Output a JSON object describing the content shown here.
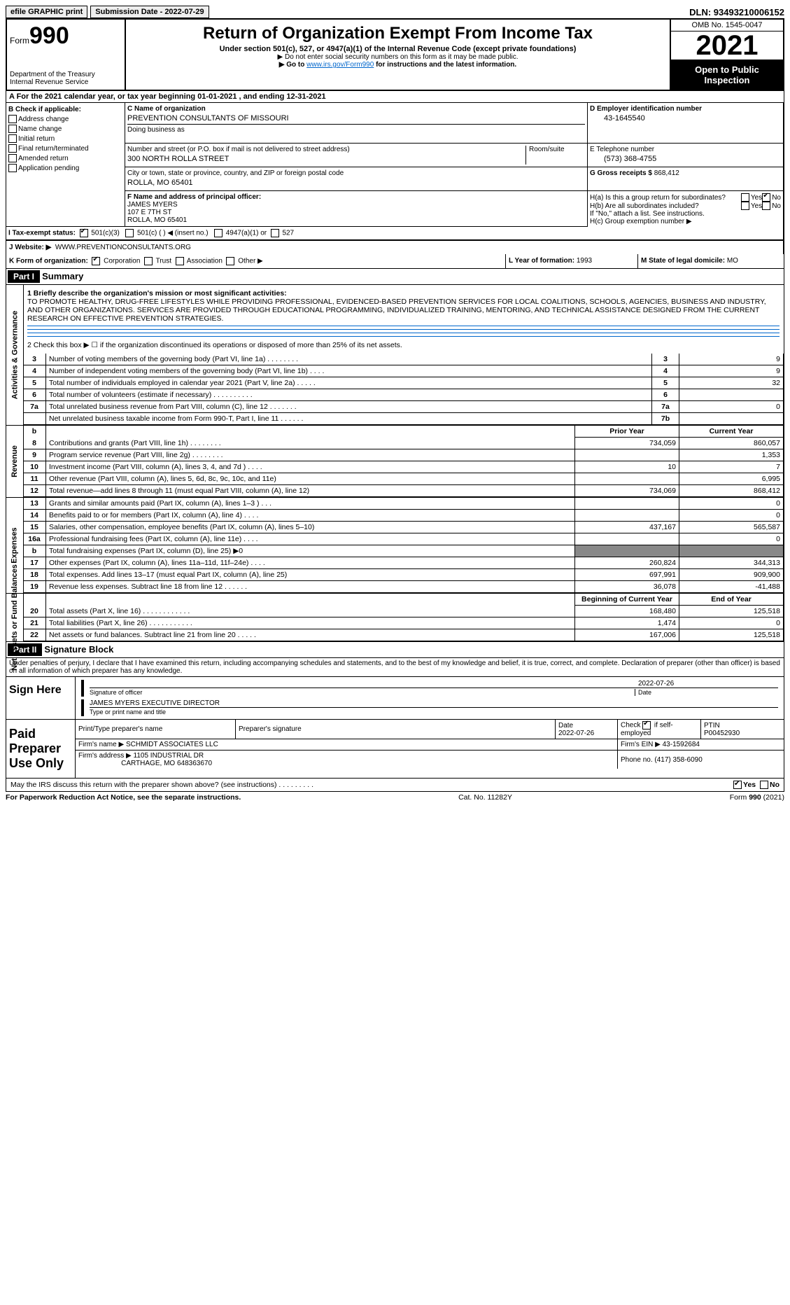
{
  "topbar": {
    "efile": "efile GRAPHIC print",
    "submission_label": "Submission Date - 2022-07-29",
    "dln_label": "DLN: 93493210006152"
  },
  "header": {
    "form_label": "Form",
    "form_no": "990",
    "dept": "Department of the Treasury",
    "irs": "Internal Revenue Service",
    "title": "Return of Organization Exempt From Income Tax",
    "subtitle": "Under section 501(c), 527, or 4947(a)(1) of the Internal Revenue Code (except private foundations)",
    "note1": "▶ Do not enter social security numbers on this form as it may be made public.",
    "note2_pre": "▶ Go to ",
    "note2_link": "www.irs.gov/Form990",
    "note2_post": " for instructions and the latest information.",
    "omb": "OMB No. 1545-0047",
    "year": "2021",
    "open": "Open to Public Inspection"
  },
  "section_a": "A   For the 2021 calendar year, or tax year beginning 01-01-2021     , and ending 12-31-2021",
  "box_b": {
    "title": "B Check if applicable:",
    "items": [
      "Address change",
      "Name change",
      "Initial return",
      "Final return/terminated",
      "Amended return",
      "Application pending"
    ]
  },
  "box_c": {
    "name_label": "C Name of organization",
    "name": "PREVENTION CONSULTANTS OF MISSOURI",
    "dba_label": "Doing business as",
    "street_label": "Number and street (or P.O. box if mail is not delivered to street address)",
    "street": "300 NORTH ROLLA STREET",
    "room_label": "Room/suite",
    "city_label": "City or town, state or province, country, and ZIP or foreign postal code",
    "city": "ROLLA, MO  65401"
  },
  "box_d": {
    "label": "D Employer identification number",
    "val": "43-1645540"
  },
  "box_e": {
    "label": "E Telephone number",
    "val": "(573) 368-4755"
  },
  "box_g": {
    "label": "G Gross receipts $",
    "val": "868,412"
  },
  "box_f": {
    "label": "F  Name and address of principal officer:",
    "name": "JAMES MYERS",
    "addr1": "107 E 7TH ST",
    "addr2": "ROLLA, MO  65401"
  },
  "box_h": {
    "ha": "H(a)  Is this a group return for subordinates?",
    "hb": "H(b)  Are all subordinates included?",
    "hb_note": "If \"No,\" attach a list. See instructions.",
    "hc": "H(c)  Group exemption number ▶",
    "yes": "Yes",
    "no": "No"
  },
  "row_i": {
    "label": "I    Tax-exempt status:",
    "c3": "501(c)(3)",
    "c": "501(c) (  ) ◀ (insert no.)",
    "a1": "4947(a)(1) or",
    "s527": "527"
  },
  "row_j": {
    "label": "J    Website: ▶",
    "val": "WWW.PREVENTIONCONSULTANTS.ORG"
  },
  "row_k": {
    "label": "K Form of organization:",
    "corp": "Corporation",
    "trust": "Trust",
    "assoc": "Association",
    "other": "Other ▶"
  },
  "row_l": {
    "label": "L Year of formation:",
    "val": "1993"
  },
  "row_m": {
    "label": "M State of legal domicile:",
    "val": "MO"
  },
  "part1": {
    "hdr": "Part I",
    "title": "Summary",
    "line1_label": "1  Briefly describe the organization's mission or most significant activities:",
    "mission": "TO PROMOTE HEALTHY, DRUG-FREE LIFESTYLES WHILE PROVIDING PROFESSIONAL, EVIDENCED-BASED PREVENTION SERVICES FOR LOCAL COALITIONS, SCHOOLS, AGENCIES, BUSINESS AND INDUSTRY, AND OTHER ORGANIZATIONS. SERVICES ARE PROVIDED THROUGH EDUCATIONAL PROGRAMMING, INDIVIDUALIZED TRAINING, MENTORING, AND TECHNICAL ASSISTANCE DESIGNED FROM THE CURRENT RESEARCH ON EFFECTIVE PREVENTION STRATEGIES.",
    "line2": "2   Check this box ▶ ☐  if the organization discontinued its operations or disposed of more than 25% of its net assets.",
    "tab_activities": "Activities & Governance",
    "tab_revenue": "Revenue",
    "tab_expenses": "Expenses",
    "tab_netassets": "Net Assets or Fund Balances"
  },
  "gov_rows": [
    {
      "n": "3",
      "desc": "Number of voting members of the governing body (Part VI, line 1a)  .   .   .   .   .   .   .   .",
      "box": "3",
      "val": "9"
    },
    {
      "n": "4",
      "desc": "Number of independent voting members of the governing body (Part VI, line 1b)    .   .   .   .",
      "box": "4",
      "val": "9"
    },
    {
      "n": "5",
      "desc": "Total number of individuals employed in calendar year 2021 (Part V, line 2a)   .   .   .   .   .",
      "box": "5",
      "val": "32"
    },
    {
      "n": "6",
      "desc": "Total number of volunteers (estimate if necessary)   .   .   .   .   .   .   .   .   .   .",
      "box": "6",
      "val": ""
    },
    {
      "n": "7a",
      "desc": "Total unrelated business revenue from Part VIII, column (C), line 12  .   .   .   .   .   .   .",
      "box": "7a",
      "val": "0"
    },
    {
      "n": "",
      "desc": "Net unrelated business taxable income from Form 990-T, Part I, line 11   .   .   .   .   .   .",
      "box": "7b",
      "val": ""
    }
  ],
  "rev_hdr": {
    "prior": "Prior Year",
    "current": "Current Year"
  },
  "rev_rows": [
    {
      "n": "8",
      "desc": "Contributions and grants (Part VIII, line 1h)   .   .   .   .   .   .   .   .",
      "p": "734,059",
      "c": "860,057"
    },
    {
      "n": "9",
      "desc": "Program service revenue (Part VIII, line 2g)   .   .   .   .   .   .   .   .",
      "p": "",
      "c": "1,353"
    },
    {
      "n": "10",
      "desc": "Investment income (Part VIII, column (A), lines 3, 4, and 7d )   .   .   .   .",
      "p": "10",
      "c": "7"
    },
    {
      "n": "11",
      "desc": "Other revenue (Part VIII, column (A), lines 5, 6d, 8c, 9c, 10c, and 11e)",
      "p": "",
      "c": "6,995"
    },
    {
      "n": "12",
      "desc": "Total revenue—add lines 8 through 11 (must equal Part VIII, column (A), line 12)",
      "p": "734,069",
      "c": "868,412"
    }
  ],
  "exp_rows": [
    {
      "n": "13",
      "desc": "Grants and similar amounts paid (Part IX, column (A), lines 1–3 )  .   .   .",
      "p": "",
      "c": "0"
    },
    {
      "n": "14",
      "desc": "Benefits paid to or for members (Part IX, column (A), line 4)  .   .   .   .",
      "p": "",
      "c": "0"
    },
    {
      "n": "15",
      "desc": "Salaries, other compensation, employee benefits (Part IX, column (A), lines 5–10)",
      "p": "437,167",
      "c": "565,587"
    },
    {
      "n": "16a",
      "desc": "Professional fundraising fees (Part IX, column (A), line 11e)  .   .   .   .",
      "p": "",
      "c": "0"
    },
    {
      "n": "b",
      "desc": "Total fundraising expenses (Part IX, column (D), line 25) ▶0",
      "p": "blank",
      "c": "blank"
    },
    {
      "n": "17",
      "desc": "Other expenses (Part IX, column (A), lines 11a–11d, 11f–24e)   .   .   .   .",
      "p": "260,824",
      "c": "344,313"
    },
    {
      "n": "18",
      "desc": "Total expenses. Add lines 13–17 (must equal Part IX, column (A), line 25)",
      "p": "697,991",
      "c": "909,900"
    },
    {
      "n": "19",
      "desc": "Revenue less expenses. Subtract line 18 from line 12  .   .   .   .   .   .",
      "p": "36,078",
      "c": "-41,488"
    }
  ],
  "net_hdr": {
    "begin": "Beginning of Current Year",
    "end": "End of Year"
  },
  "net_rows": [
    {
      "n": "20",
      "desc": "Total assets (Part X, line 16)  .   .   .   .   .   .   .   .   .   .   .   .",
      "p": "168,480",
      "c": "125,518"
    },
    {
      "n": "21",
      "desc": "Total liabilities (Part X, line 26)   .   .   .   .   .   .   .   .   .   .   .",
      "p": "1,474",
      "c": "0"
    },
    {
      "n": "22",
      "desc": "Net assets or fund balances. Subtract line 21 from line 20  .   .   .   .   .",
      "p": "167,006",
      "c": "125,518"
    }
  ],
  "part2": {
    "hdr": "Part II",
    "title": "Signature Block",
    "perjury": "Under penalties of perjury, I declare that I have examined this return, including accompanying schedules and statements, and to the best of my knowledge and belief, it is true, correct, and complete. Declaration of preparer (other than officer) is based on all information of which preparer has any knowledge."
  },
  "sign": {
    "label": "Sign Here",
    "sig_of": "Signature of officer",
    "date": "2022-07-26",
    "date_label": "Date",
    "name": "JAMES MYERS  EXECUTIVE DIRECTOR",
    "name_label": "Type or print name and title"
  },
  "preparer": {
    "label": "Paid Preparer Use Only",
    "h1": "Print/Type preparer's name",
    "h2": "Preparer's signature",
    "h3": "Date",
    "date": "2022-07-26",
    "h4_pre": "Check",
    "h4_post": "if self-employed",
    "h5": "PTIN",
    "ptin": "P00452930",
    "firm_label": "Firm's name    ▶",
    "firm": "SCHMIDT ASSOCIATES LLC",
    "ein_label": "Firm's EIN ▶",
    "ein": "43-1592684",
    "addr_label": "Firm's address ▶",
    "addr1": "1105 INDUSTRIAL DR",
    "addr2": "CARTHAGE, MO  648363670",
    "phone_label": "Phone no.",
    "phone": "(417) 358-6090"
  },
  "footer": {
    "discuss": "May the IRS discuss this return with the preparer shown above? (see instructions)   .   .   .   .   .   .   .   .   .",
    "yes": "Yes",
    "no": "No",
    "paperwork": "For Paperwork Reduction Act Notice, see the separate instructions.",
    "cat": "Cat. No. 11282Y",
    "form": "Form 990 (2021)"
  }
}
